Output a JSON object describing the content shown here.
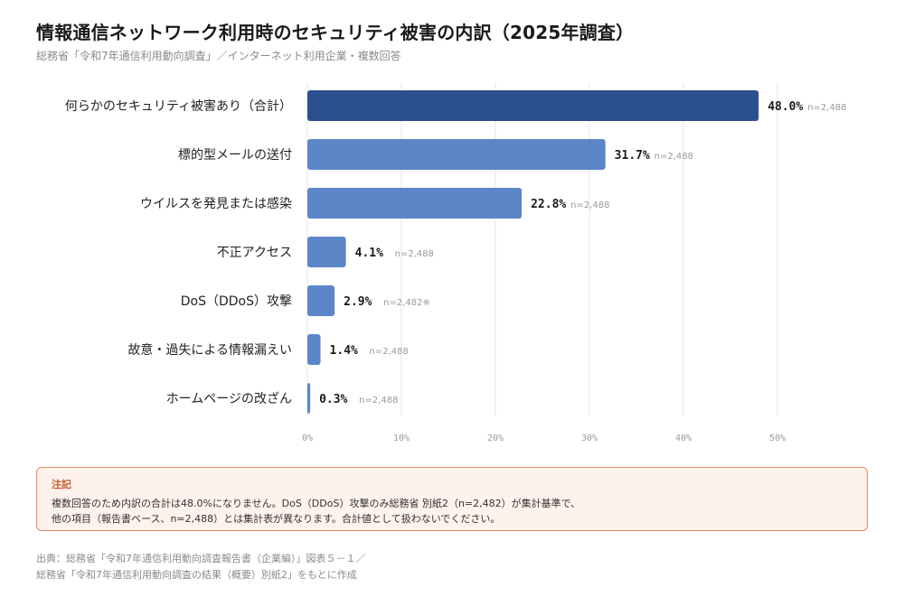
{
  "header": {
    "title": "情報通信ネットワーク利用時のセキュリティ被害の内訳（2025年調査）",
    "subtitle": "総務省「令和7年通信利用動向調査」／インターネット利用企業・複数回答"
  },
  "chart_data": {
    "type": "bar",
    "orientation": "horizontal",
    "categories": [
      "何らかのセキュリティ被害あり（合計）",
      "標的型メールの送付",
      "ウイルスを発見または感染",
      "不正アクセス",
      "DoS（DDoS）攻撃",
      "故意・過失による情報漏えい",
      "ホームページの改ざん"
    ],
    "values": [
      48.0,
      31.7,
      22.8,
      4.1,
      2.9,
      1.4,
      0.3
    ],
    "value_labels": [
      "48.0%",
      "31.7%",
      "22.8%",
      "4.1%",
      "2.9%",
      "1.4%",
      "0.3%"
    ],
    "sample_labels": [
      "n=2,488",
      "n=2,488",
      "n=2,488",
      "n=2,488",
      "n=2,482※",
      "n=2,488",
      "n=2,488"
    ],
    "xlim": [
      0,
      50
    ],
    "xticks": [
      "0%",
      "10%",
      "20%",
      "30%",
      "40%",
      "50%"
    ],
    "xtick_values": [
      0,
      10,
      20,
      30,
      40,
      50
    ],
    "grid": true,
    "colors": {
      "highlight": "#2c4f8f",
      "bar": "#5b86c8",
      "grid": "#e6e6e6"
    }
  },
  "note": {
    "title": "注記",
    "lines": [
      "複数回答のため内訳の合計は48.0%になりません。DoS（DDoS）攻撃のみ総務省 別紙2（n=2,482）が集計基準で、",
      "他の項目（報告書ベース、n=2,488）とは集計表が異なります。合計値として扱わないでください。"
    ]
  },
  "source": {
    "lines": [
      "出典：総務省「令和7年通信利用動向調査報告書（企業編）」図表５－１／",
      "総務省「令和7年通信利用動向調査の結果（概要）別紙2」をもとに作成"
    ]
  }
}
